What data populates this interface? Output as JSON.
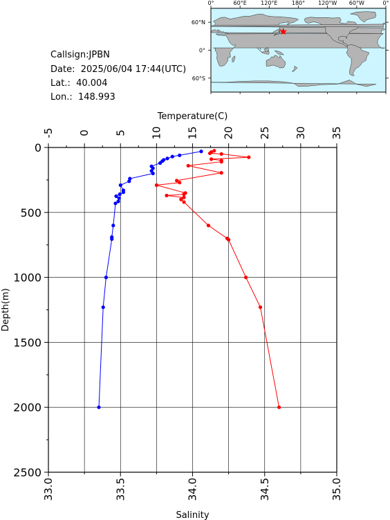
{
  "station": {
    "callsign": "Callsign:JPBN",
    "date": "Date:  2025/06/04 17:44(UTC)",
    "lat": "Lat.:  40.004",
    "lon": "Lon.:  148.993"
  },
  "map": {
    "top_labels": [
      "0°",
      "60°E",
      "120°E",
      "180°",
      "120°W",
      "60°W",
      "0°"
    ],
    "side_labels": [
      "60°N",
      "0°",
      "60°S"
    ],
    "ocean_color": "#ccf5ff",
    "land_color": "#b4b4b4",
    "marker": {
      "lat": 40.004,
      "lon": 148.993,
      "color": "#ff0000",
      "shape": "star"
    }
  },
  "chart_data": {
    "type": "line",
    "ylabel": "Depth(m)",
    "yrange": [
      0,
      2500
    ],
    "ytick_labels": [
      "0",
      "500",
      "1000",
      "1500",
      "2000",
      "2500"
    ],
    "y_inverted": true,
    "top_axis": {
      "label": "Temperature(C)",
      "range": [
        -5,
        35
      ],
      "tick_labels": [
        "-5",
        "0",
        "5",
        "10",
        "15",
        "20",
        "25",
        "30",
        "35"
      ]
    },
    "bottom_axis": {
      "label": "Salinity",
      "range": [
        33.0,
        35.0
      ],
      "tick_labels": [
        "33.0",
        "33.5",
        "34.0",
        "34.5",
        "35.0"
      ]
    },
    "grid": true,
    "series": [
      {
        "axis": "top",
        "color": "#0000ff",
        "points": [
          [
            16.2,
            30
          ],
          [
            13.2,
            60
          ],
          [
            12.2,
            70
          ],
          [
            11.5,
            85
          ],
          [
            11.0,
            95
          ],
          [
            10.8,
            105
          ],
          [
            10.5,
            120
          ],
          [
            9.3,
            145
          ],
          [
            9.5,
            160
          ],
          [
            9.3,
            180
          ],
          [
            9.5,
            200
          ],
          [
            6.3,
            240
          ],
          [
            6.2,
            260
          ],
          [
            5.0,
            290
          ],
          [
            5.4,
            330
          ],
          [
            5.4,
            345
          ],
          [
            4.9,
            360
          ],
          [
            4.4,
            375
          ],
          [
            4.8,
            390
          ],
          [
            4.7,
            415
          ],
          [
            4.3,
            430
          ],
          [
            4.0,
            600
          ],
          [
            3.8,
            690
          ],
          [
            3.8,
            705
          ],
          [
            3.0,
            1000
          ],
          [
            2.6,
            1230
          ],
          [
            2.0,
            2000
          ]
        ]
      },
      {
        "axis": "bottom",
        "color": "#ff0000",
        "points": [
          [
            34.15,
            25
          ],
          [
            34.13,
            35
          ],
          [
            34.12,
            45
          ],
          [
            34.2,
            50
          ],
          [
            34.39,
            75
          ],
          [
            34.13,
            90
          ],
          [
            34.2,
            100
          ],
          [
            34.2,
            110
          ],
          [
            33.97,
            140
          ],
          [
            34.2,
            195
          ],
          [
            33.89,
            255
          ],
          [
            33.91,
            270
          ],
          [
            33.75,
            290
          ],
          [
            33.95,
            350
          ],
          [
            33.94,
            360
          ],
          [
            33.82,
            370
          ],
          [
            33.94,
            385
          ],
          [
            33.92,
            400
          ],
          [
            33.94,
            420
          ],
          [
            34.11,
            600
          ],
          [
            34.24,
            700
          ],
          [
            34.25,
            710
          ],
          [
            34.37,
            1000
          ],
          [
            34.47,
            1230
          ],
          [
            34.6,
            2000
          ]
        ]
      }
    ]
  }
}
